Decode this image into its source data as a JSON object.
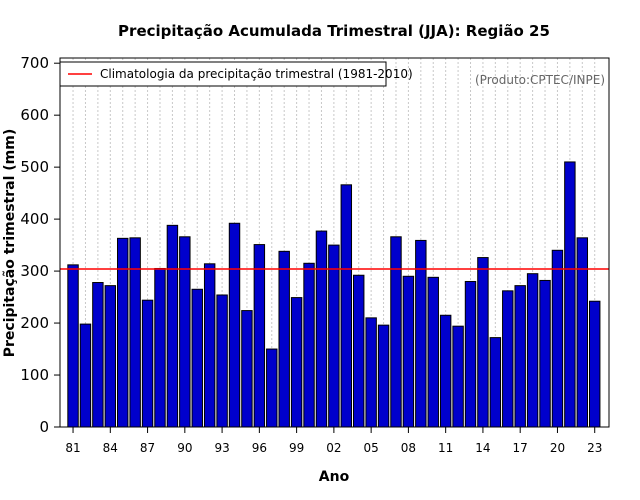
{
  "chart_data": {
    "type": "bar",
    "title": "Precipitação Acumulada Trimestral (JJA): Região 25",
    "xlabel": "Ano",
    "ylabel": "Precipitação trimestral (mm)",
    "ylim": [
      0,
      710
    ],
    "yticks": [
      0,
      100,
      200,
      300,
      400,
      500,
      600,
      700
    ],
    "categories": [
      "1981",
      "1982",
      "1983",
      "1984",
      "1985",
      "1986",
      "1987",
      "1988",
      "1989",
      "1990",
      "1991",
      "1992",
      "1993",
      "1994",
      "1995",
      "1996",
      "1997",
      "1998",
      "1999",
      "2000",
      "2001",
      "2002",
      "2003",
      "2004",
      "2005",
      "2006",
      "2007",
      "2008",
      "2009",
      "2010",
      "2011",
      "2012",
      "2013",
      "2014",
      "2015",
      "2016",
      "2017",
      "2018",
      "2019",
      "2020",
      "2021",
      "2022",
      "2023"
    ],
    "tick_labels": [
      "81",
      "",
      "",
      "84",
      "",
      "",
      "87",
      "",
      "",
      "90",
      "",
      "",
      "93",
      "",
      "",
      "96",
      "",
      "",
      "99",
      "",
      "",
      "02",
      "",
      "",
      "05",
      "",
      "",
      "08",
      "",
      "",
      "11",
      "",
      "",
      "14",
      "",
      "",
      "17",
      "",
      "",
      "20",
      "",
      "",
      "23"
    ],
    "values": [
      312,
      198,
      278,
      272,
      363,
      364,
      244,
      305,
      388,
      366,
      265,
      314,
      254,
      392,
      224,
      351,
      150,
      338,
      249,
      315,
      377,
      350,
      466,
      292,
      210,
      196,
      366,
      290,
      359,
      288,
      215,
      194,
      280,
      326,
      172,
      262,
      272,
      295,
      282,
      340,
      510,
      364,
      242
    ],
    "bar_color": "#0000cc",
    "bar_edge_color": "#000000",
    "climatology": {
      "value": 304,
      "color": "#ff0000",
      "label": "Climatologia da precipitação trimestral (1981-2010)"
    },
    "legend_position": "top-left",
    "source_note": "(Produto:CPTEC/INPE)",
    "grid": "vertical dotted"
  }
}
